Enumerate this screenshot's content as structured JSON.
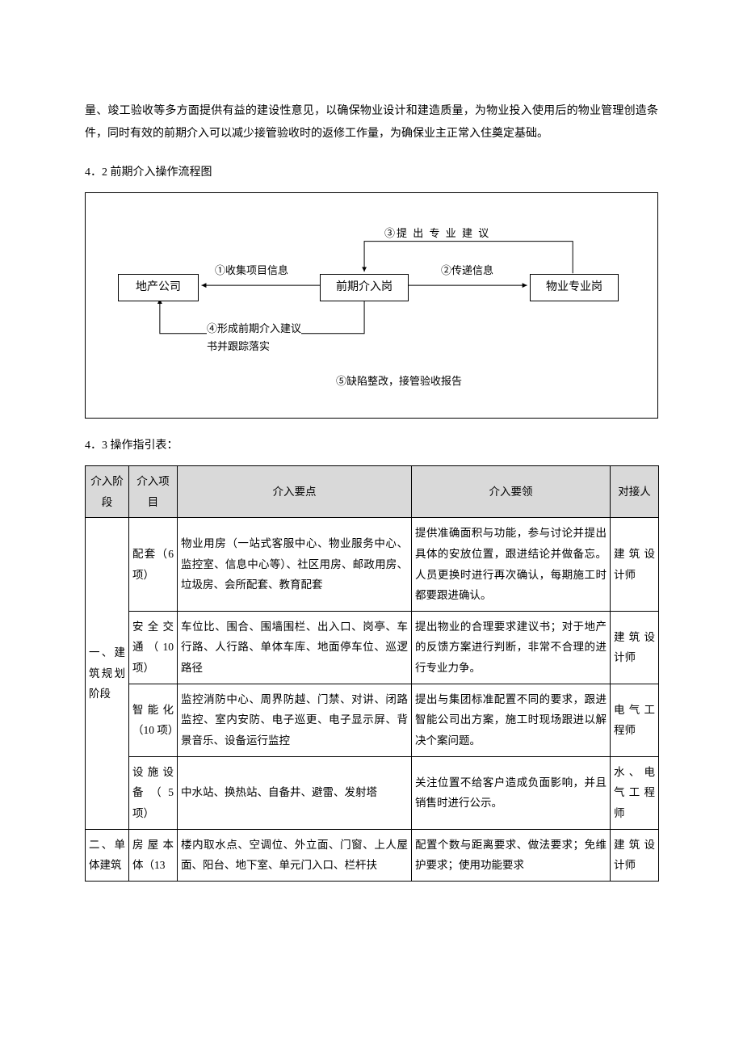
{
  "intro_para": "量、竣工验收等多方面提供有益的建设性意见，以确保物业设计和建造质量，为物业投入使用后的物业管理创造条件，同时有效的前期介入可以减少接管验收时的返修工作量，为确保业主正常入住奠定基础。",
  "sec42_title": "4．2 前期介入操作流程图",
  "sec43_title": "4．3 操作指引表：",
  "flow": {
    "box_left": "地产公司",
    "box_mid": "前期介入岗",
    "box_right": "物业专业岗",
    "lbl1": "①收集项目信息",
    "lbl2": "②传递信息",
    "lbl3": "③提 出 专 业 建 议",
    "lbl4a": "④形成前期介入建议",
    "lbl4b": "书并跟踪落实",
    "lbl5": "⑤缺陷整改，接管验收报告"
  },
  "table": {
    "headers": {
      "h1": "介入阶段",
      "h2": "介入项目",
      "h3": "介入要点",
      "h4": "介入要领",
      "h5": "对接人"
    },
    "rows": [
      {
        "stage": "一、建筑规划阶段",
        "stage_rowspan": 4,
        "item": "配套（6项）",
        "points": "物业用房（一站式客服中心、物业服务中心、监控室、信息中心等）、社区用房、邮政用房、垃圾房、会所配套、教育配套",
        "tips": "提供准确面积与功能，参与讨论并提出具体的安放位置，跟进结论并做备忘。人员更换时进行再次确认，每期施工时都要跟进确认。",
        "contact": "建筑设计师"
      },
      {
        "item": "安全交通（10项）",
        "points": "车位比、围合、围墙围栏、出入口、岗亭、车行路、人行路、单体车库、地面停车位、巡逻路径",
        "tips": "提出物业的合理要求建议书；对于地产的反馈方案进行判断，非常不合理的进行专业力争。",
        "contact": "建筑设计师"
      },
      {
        "item": "智能化（10 项）",
        "points": "监控消防中心、周界防越、门禁、对讲、闭路监控、室内安防、电子巡更、电子显示屏、背景音乐、设备运行监控",
        "tips": "提出与集团标准配置不同的要求，跟进智能公司出方案，施工时现场跟进以解决个案问题。",
        "contact": "电气工程师"
      },
      {
        "item": "设施设备（5 项）",
        "points": "中水站、换热站、自备井、避雷、发射塔",
        "tips": "关注位置不给客户造成负面影响，并且销售时进行公示。",
        "contact": "水、电气工程师"
      },
      {
        "stage": "二、单体建筑",
        "stage_rowspan": 1,
        "item": "房屋本体（13",
        "points": "楼内取水点、空调位、外立面、门窗、上人屋面、阳台、地下室、单元门入口、栏杆扶",
        "tips": "配置个数与距离要求、做法要求；免维护要求；使用功能要求",
        "contact": "建筑设计师"
      }
    ]
  },
  "colors": {
    "header_bg": "#d9d9d9",
    "line": "#000000",
    "text": "#000000",
    "bg": "#ffffff"
  }
}
